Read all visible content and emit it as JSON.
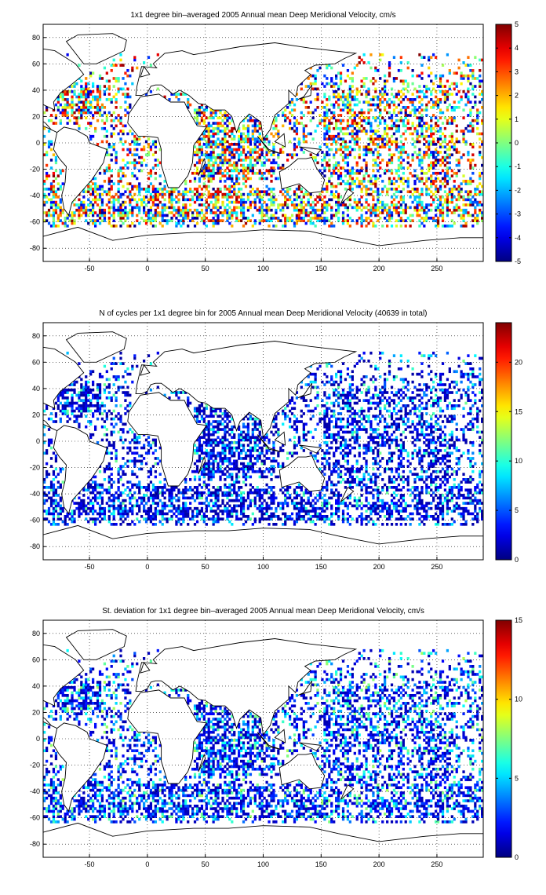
{
  "figure": {
    "panels": [
      {
        "title": "1x1 degree bin–averaged 2005 Annual mean Deep Meridional Velocity, cm/s",
        "colorbar": {
          "min": -5,
          "max": 5,
          "ticks": [
            "5",
            "4",
            "3",
            "2",
            "1",
            "0",
            "-1",
            "-2",
            "-3",
            "-4",
            "-5"
          ],
          "colormap": "jet"
        },
        "style": "diverging"
      },
      {
        "title": "N of cycles per 1x1 degree bin for 2005 Annual mean Deep Meridional Velocity (40639 in total)",
        "colorbar": {
          "min": 0,
          "max": 24,
          "ticks": [
            "20",
            "15",
            "10",
            "5",
            "0"
          ],
          "colormap": "jet"
        },
        "style": "count"
      },
      {
        "title": "St. deviation for 1x1 degree bin–averaged 2005 Annual mean Deep Meridional Velocity, cm/s",
        "colorbar": {
          "min": 0,
          "max": 15,
          "ticks": [
            "15",
            "10",
            "5",
            "0"
          ],
          "colormap": "jet"
        },
        "style": "std"
      }
    ],
    "x_ticks": [
      "-50",
      "0",
      "50",
      "100",
      "150",
      "200",
      "250"
    ],
    "y_ticks": [
      "80",
      "60",
      "40",
      "20",
      "0",
      "-20",
      "-40",
      "-60",
      "-80"
    ],
    "lon_range": [
      -90,
      290
    ],
    "lat_range": [
      -90,
      90
    ],
    "grid": "dotted",
    "map": "world coastlines",
    "colors": {
      "background": "#ffffff",
      "coast": "#000000"
    }
  }
}
